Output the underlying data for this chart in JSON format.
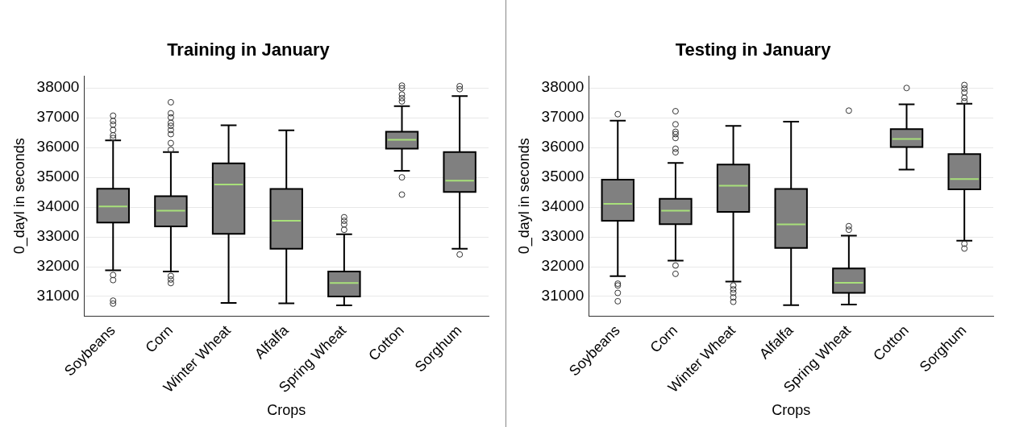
{
  "chart_data": [
    {
      "type": "box",
      "title": "Training in January",
      "xlabel": "Crops",
      "ylabel": "0_dayl in seconds",
      "categories": [
        "Soybeans",
        "Corn",
        "Winter Wheat",
        "Alfalfa",
        "Spring Wheat",
        "Cotton",
        "Sorghum"
      ],
      "ylim": [
        30350,
        38400
      ],
      "yticks": [
        31000,
        32000,
        33000,
        34000,
        35000,
        36000,
        37000,
        38000
      ],
      "grid": "y",
      "legend": false,
      "series": [
        {
          "color": "#808080",
          "boxes": [
            {
              "low": 31880,
              "q1": 33480,
              "median": 34020,
              "q3": 34620,
              "high": 36240,
              "outliers": [
                37070,
                36890,
                36770,
                36590,
                36410,
                36320,
                31720,
                31550,
                30860,
                30760
              ]
            },
            {
              "low": 31840,
              "q1": 33350,
              "median": 33880,
              "q3": 34370,
              "high": 35850,
              "outliers": [
                37520,
                37150,
                37010,
                36830,
                36730,
                36590,
                36450,
                36150,
                35930,
                31690,
                31570,
                31450
              ]
            },
            {
              "low": 30780,
              "q1": 33100,
              "median": 34760,
              "q3": 35470,
              "high": 36750
            },
            {
              "low": 30770,
              "q1": 32600,
              "median": 33540,
              "q3": 34610,
              "high": 36580
            },
            {
              "low": 30700,
              "q1": 31000,
              "median": 31450,
              "q3": 31840,
              "high": 33090,
              "outliers": [
                33660,
                33540,
                33420,
                33240
              ]
            },
            {
              "low": 35220,
              "q1": 35960,
              "median": 36260,
              "q3": 36530,
              "high": 37390,
              "outliers": [
                38080,
                37990,
                37780,
                37660,
                37550,
                35000,
                34420
              ]
            },
            {
              "low": 32600,
              "q1": 34510,
              "median": 34890,
              "q3": 35850,
              "high": 37730,
              "outliers": [
                38060,
                37960,
                32410
              ]
            }
          ]
        }
      ]
    },
    {
      "type": "box",
      "title": "Testing in January",
      "xlabel": "Crops",
      "ylabel": "0_dayl in seconds",
      "categories": [
        "Soybeans",
        "Corn",
        "Winter Wheat",
        "Alfalfa",
        "Spring Wheat",
        "Cotton",
        "Sorghum"
      ],
      "ylim": [
        30350,
        38400
      ],
      "yticks": [
        31000,
        32000,
        33000,
        34000,
        35000,
        36000,
        37000,
        38000
      ],
      "grid": "y",
      "legend": false,
      "series": [
        {
          "color": "#808080",
          "boxes": [
            {
              "low": 31680,
              "q1": 33540,
              "median": 34110,
              "q3": 34920,
              "high": 36900,
              "outliers": [
                37120,
                31430,
                31370,
                31120,
                30840
              ]
            },
            {
              "low": 32200,
              "q1": 33430,
              "median": 33880,
              "q3": 34280,
              "high": 35480,
              "outliers": [
                37220,
                36780,
                36530,
                36450,
                36320,
                35960,
                35840,
                32040,
                31760
              ]
            },
            {
              "low": 31500,
              "q1": 33840,
              "median": 34720,
              "q3": 35430,
              "high": 36730,
              "outliers": [
                31370,
                31240,
                31120,
                30970,
                30820
              ]
            },
            {
              "low": 30710,
              "q1": 32630,
              "median": 33420,
              "q3": 34610,
              "high": 36870
            },
            {
              "low": 30730,
              "q1": 31120,
              "median": 31460,
              "q3": 31940,
              "high": 33040,
              "outliers": [
                37240,
                33360,
                33240
              ]
            },
            {
              "low": 35260,
              "q1": 36020,
              "median": 36290,
              "q3": 36620,
              "high": 37450,
              "outliers": [
                38000
              ]
            },
            {
              "low": 32870,
              "q1": 34600,
              "median": 34940,
              "q3": 35780,
              "high": 37470,
              "outliers": [
                38100,
                37980,
                37850,
                37670,
                37550,
                32770,
                32610
              ]
            }
          ]
        }
      ]
    }
  ]
}
